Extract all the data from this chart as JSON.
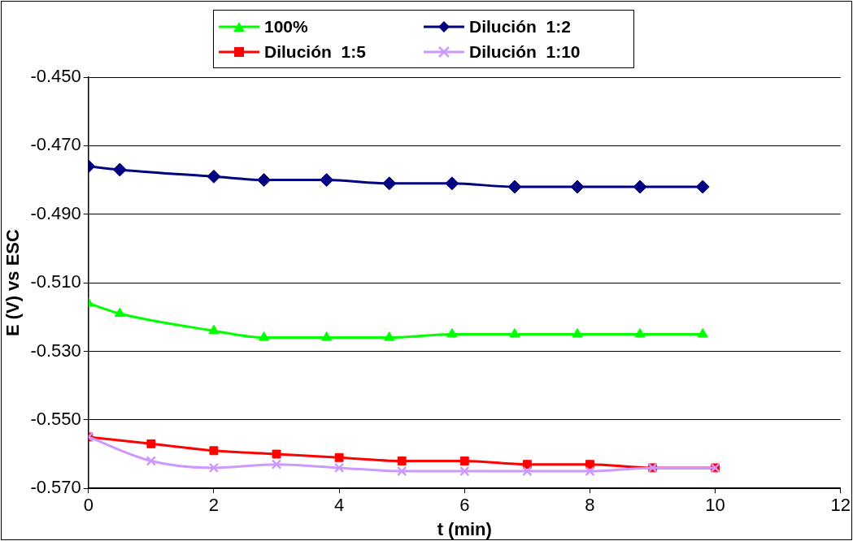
{
  "chart_data": {
    "type": "line",
    "xlabel": "t (min)",
    "ylabel": "E (V) vs ESC",
    "xlim": [
      0,
      12
    ],
    "xticks": [
      0,
      2,
      4,
      6,
      8,
      10,
      12
    ],
    "ylim": [
      -0.57,
      -0.45
    ],
    "yticks": [
      {
        "value": -0.45,
        "label": "-0.450"
      },
      {
        "value": -0.47,
        "label": "-0.470"
      },
      {
        "value": -0.49,
        "label": "-0.490"
      },
      {
        "value": -0.51,
        "label": "-0.510"
      },
      {
        "value": -0.53,
        "label": "-0.530"
      },
      {
        "value": -0.55,
        "label": "-0.550"
      },
      {
        "value": -0.57,
        "label": "-0.570"
      }
    ],
    "grid": "y",
    "legend": "top",
    "series": [
      {
        "name": "100%",
        "color": "#00ff00",
        "marker": "triangle",
        "x": [
          0,
          0.5,
          2,
          2.8,
          3.8,
          4.8,
          5.8,
          6.8,
          7.8,
          8.8,
          9.8
        ],
        "values": [
          -0.516,
          -0.519,
          -0.524,
          -0.526,
          -0.526,
          -0.526,
          -0.525,
          -0.525,
          -0.525,
          -0.525,
          -0.525
        ]
      },
      {
        "name": "Dilución  1:2",
        "color": "#000080",
        "marker": "diamond",
        "x": [
          0,
          0.5,
          2,
          2.8,
          3.8,
          4.8,
          5.8,
          6.8,
          7.8,
          8.8,
          9.8
        ],
        "values": [
          -0.476,
          -0.477,
          -0.479,
          -0.48,
          -0.48,
          -0.481,
          -0.481,
          -0.482,
          -0.482,
          -0.482,
          -0.482
        ]
      },
      {
        "name": "Dilución  1:5",
        "color": "#ff0000",
        "marker": "square",
        "x": [
          0,
          1,
          2,
          3,
          4,
          5,
          6,
          7,
          8,
          9,
          10
        ],
        "values": [
          -0.555,
          -0.557,
          -0.559,
          -0.56,
          -0.561,
          -0.562,
          -0.562,
          -0.563,
          -0.563,
          -0.564,
          -0.564
        ]
      },
      {
        "name": "Dilución  1:10",
        "color": "#cc99ff",
        "marker": "cross",
        "x": [
          0,
          1,
          2,
          3,
          4,
          5,
          6,
          7,
          8,
          9,
          10
        ],
        "values": [
          -0.555,
          -0.562,
          -0.564,
          -0.563,
          -0.564,
          -0.565,
          -0.565,
          -0.565,
          -0.565,
          -0.564,
          -0.564
        ]
      }
    ]
  }
}
